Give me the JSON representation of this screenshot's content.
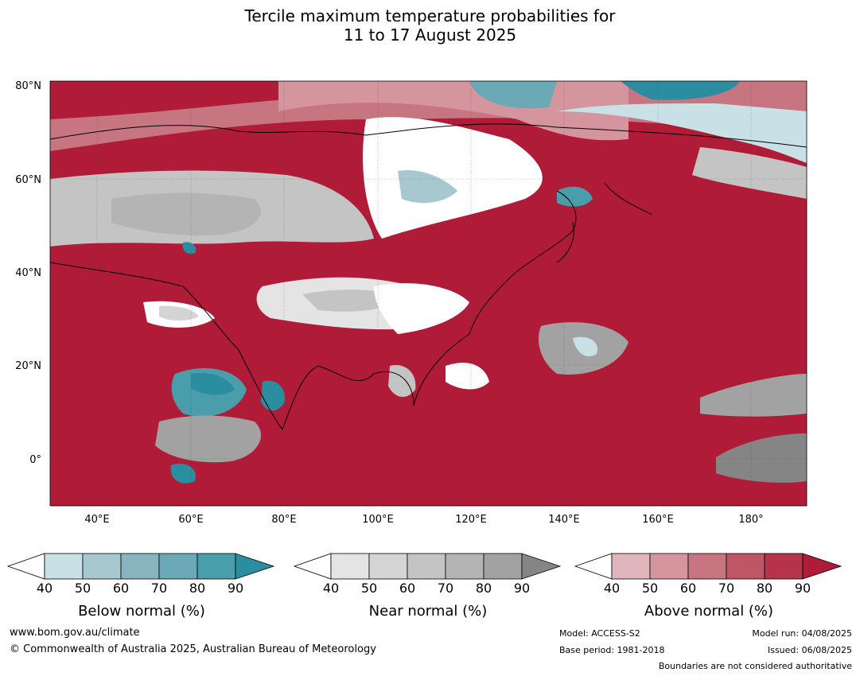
{
  "title_line1": "Tercile maximum temperature probabilities for",
  "title_line2": "11 to 17 August 2025",
  "lat_labels": [
    "80°N",
    "60°N",
    "40°N",
    "20°N",
    "0°"
  ],
  "lon_labels": [
    "40°E",
    "60°E",
    "80°E",
    "100°E",
    "120°E",
    "140°E",
    "160°E",
    "180°"
  ],
  "colorbars": [
    {
      "label": "Below normal (%)",
      "ticks": [
        "40",
        "50",
        "60",
        "70",
        "80",
        "90"
      ],
      "colors": [
        "#ffffff",
        "#c9e0e7",
        "#a7c8cf",
        "#88b4bf",
        "#6aa9b5",
        "#4a9daa",
        "#2b8ea0"
      ]
    },
    {
      "label": "Near normal (%)",
      "ticks": [
        "40",
        "50",
        "60",
        "70",
        "80",
        "90"
      ],
      "colors": [
        "#ffffff",
        "#e4e4e4",
        "#d4d4d4",
        "#c4c4c4",
        "#b4b4b4",
        "#a2a2a2",
        "#858585"
      ]
    },
    {
      "label": "Above normal (%)",
      "ticks": [
        "40",
        "50",
        "60",
        "70",
        "80",
        "90"
      ],
      "colors": [
        "#ffffff",
        "#e0b6bc",
        "#d4959e",
        "#c77580",
        "#be5666",
        "#b6344b",
        "#b01c37"
      ]
    }
  ],
  "footer": {
    "website": "www.bom.gov.au/climate",
    "copyright": "© Commonwealth of Australia 2025, Australian Bureau of Meteorology",
    "model": "Model: ACCESS-S2",
    "base_period": "Base period: 1981-2018",
    "model_run": "Model run: 04/08/2025",
    "issued": "Issued: 06/08/2025",
    "disclaimer": "Boundaries are not considered authoritative"
  }
}
